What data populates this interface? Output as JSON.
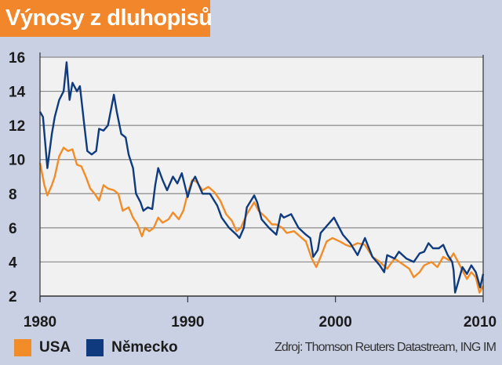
{
  "chart_data": {
    "type": "line",
    "title": "Výnosy z dluhopisů",
    "xlabel": "",
    "ylabel": "",
    "xlim": [
      1980,
      2010
    ],
    "ylim": [
      2,
      16
    ],
    "x_ticks": [
      "1980",
      "1990",
      "2000",
      "2010"
    ],
    "y_ticks": [
      "2",
      "4",
      "6",
      "8",
      "10",
      "12",
      "14",
      "16"
    ],
    "grid": "horizontal",
    "legend_placement": "bottom-left",
    "source": "Zdroj: Thomson Reuters Datastream, ING IM",
    "series": [
      {
        "name": "USA",
        "color": "#f28c28",
        "points": [
          [
            1980.0,
            9.8
          ],
          [
            1980.3,
            8.5
          ],
          [
            1980.5,
            7.9
          ],
          [
            1980.8,
            8.5
          ],
          [
            1981.0,
            9.0
          ],
          [
            1981.3,
            10.2
          ],
          [
            1981.6,
            10.7
          ],
          [
            1981.9,
            10.5
          ],
          [
            1982.2,
            10.6
          ],
          [
            1982.5,
            9.7
          ],
          [
            1982.8,
            9.6
          ],
          [
            1983.1,
            9.0
          ],
          [
            1983.4,
            8.3
          ],
          [
            1983.7,
            8.0
          ],
          [
            1984.0,
            7.6
          ],
          [
            1984.3,
            8.5
          ],
          [
            1984.6,
            8.3
          ],
          [
            1985.0,
            8.2
          ],
          [
            1985.3,
            8.0
          ],
          [
            1985.6,
            7.0
          ],
          [
            1986.0,
            7.2
          ],
          [
            1986.3,
            6.6
          ],
          [
            1986.6,
            6.2
          ],
          [
            1986.9,
            5.5
          ],
          [
            1987.1,
            6.0
          ],
          [
            1987.4,
            5.8
          ],
          [
            1987.7,
            6.0
          ],
          [
            1988.0,
            6.6
          ],
          [
            1988.3,
            6.3
          ],
          [
            1988.7,
            6.5
          ],
          [
            1989.0,
            6.9
          ],
          [
            1989.4,
            6.5
          ],
          [
            1989.7,
            7.0
          ],
          [
            1990.0,
            8.0
          ],
          [
            1990.3,
            8.8
          ],
          [
            1990.6,
            8.7
          ],
          [
            1991.0,
            8.2
          ],
          [
            1991.4,
            8.4
          ],
          [
            1991.8,
            8.1
          ],
          [
            1992.2,
            7.6
          ],
          [
            1992.6,
            6.8
          ],
          [
            1993.0,
            6.4
          ],
          [
            1993.3,
            5.8
          ],
          [
            1993.6,
            6.0
          ],
          [
            1994.0,
            6.8
          ],
          [
            1994.5,
            7.5
          ],
          [
            1994.8,
            7.0
          ],
          [
            1995.3,
            6.6
          ],
          [
            1995.7,
            6.2
          ],
          [
            1996.0,
            6.2
          ],
          [
            1996.4,
            6.0
          ],
          [
            1996.7,
            5.7
          ],
          [
            1997.2,
            5.8
          ],
          [
            1997.6,
            5.5
          ],
          [
            1998.0,
            5.2
          ],
          [
            1998.4,
            4.2
          ],
          [
            1998.7,
            3.7
          ],
          [
            1999.0,
            4.3
          ],
          [
            1999.4,
            5.2
          ],
          [
            1999.8,
            5.4
          ],
          [
            2000.3,
            5.2
          ],
          [
            2000.7,
            5.0
          ],
          [
            2001.0,
            4.9
          ],
          [
            2001.5,
            5.1
          ],
          [
            2002.0,
            5.0
          ],
          [
            2002.5,
            4.3
          ],
          [
            2003.0,
            4.0
          ],
          [
            2003.5,
            3.6
          ],
          [
            2004.0,
            4.2
          ],
          [
            2004.5,
            3.9
          ],
          [
            2005.0,
            3.6
          ],
          [
            2005.3,
            3.1
          ],
          [
            2005.7,
            3.4
          ],
          [
            2006.0,
            3.8
          ],
          [
            2006.5,
            4.0
          ],
          [
            2006.9,
            3.7
          ],
          [
            2007.3,
            4.3
          ],
          [
            2007.7,
            4.1
          ],
          [
            2008.0,
            4.5
          ],
          [
            2008.3,
            4.0
          ],
          [
            2008.6,
            3.5
          ],
          [
            2008.9,
            3.0
          ],
          [
            2009.2,
            3.4
          ],
          [
            2009.5,
            3.1
          ],
          [
            2009.75,
            2.2
          ],
          [
            2010.0,
            2.6
          ]
        ]
      },
      {
        "name": "Německo",
        "color": "#0f3a7d",
        "points": [
          [
            1980.0,
            12.8
          ],
          [
            1980.2,
            12.5
          ],
          [
            1980.5,
            9.5
          ],
          [
            1980.8,
            11.5
          ],
          [
            1981.0,
            12.5
          ],
          [
            1981.3,
            13.5
          ],
          [
            1981.6,
            14.0
          ],
          [
            1981.8,
            15.7
          ],
          [
            1982.0,
            13.5
          ],
          [
            1982.2,
            14.5
          ],
          [
            1982.5,
            14.0
          ],
          [
            1982.7,
            14.3
          ],
          [
            1983.0,
            12.0
          ],
          [
            1983.2,
            10.5
          ],
          [
            1983.5,
            10.3
          ],
          [
            1983.8,
            10.5
          ],
          [
            1984.0,
            11.8
          ],
          [
            1984.3,
            11.7
          ],
          [
            1984.6,
            12.0
          ],
          [
            1985.0,
            13.8
          ],
          [
            1985.2,
            12.8
          ],
          [
            1985.5,
            11.5
          ],
          [
            1985.8,
            11.3
          ],
          [
            1986.0,
            10.3
          ],
          [
            1986.3,
            9.5
          ],
          [
            1986.5,
            8.0
          ],
          [
            1986.8,
            7.5
          ],
          [
            1987.0,
            7.0
          ],
          [
            1987.3,
            7.2
          ],
          [
            1987.6,
            7.1
          ],
          [
            1987.8,
            8.5
          ],
          [
            1988.0,
            9.5
          ],
          [
            1988.3,
            8.8
          ],
          [
            1988.6,
            8.2
          ],
          [
            1989.0,
            9.0
          ],
          [
            1989.3,
            8.6
          ],
          [
            1989.6,
            9.2
          ],
          [
            1990.0,
            7.8
          ],
          [
            1990.3,
            8.7
          ],
          [
            1990.5,
            9.0
          ],
          [
            1991.0,
            8.0
          ],
          [
            1991.5,
            8.0
          ],
          [
            1992.0,
            7.3
          ],
          [
            1992.3,
            6.6
          ],
          [
            1992.8,
            6.0
          ],
          [
            1993.3,
            5.6
          ],
          [
            1993.5,
            5.4
          ],
          [
            1993.8,
            6.0
          ],
          [
            1994.0,
            7.2
          ],
          [
            1994.5,
            7.9
          ],
          [
            1994.7,
            7.5
          ],
          [
            1995.0,
            6.5
          ],
          [
            1995.5,
            6.0
          ],
          [
            1996.0,
            5.6
          ],
          [
            1996.3,
            6.8
          ],
          [
            1996.5,
            6.6
          ],
          [
            1997.0,
            6.8
          ],
          [
            1997.5,
            6.0
          ],
          [
            1998.0,
            5.6
          ],
          [
            1998.3,
            5.4
          ],
          [
            1998.5,
            4.3
          ],
          [
            1998.8,
            4.7
          ],
          [
            1999.0,
            5.7
          ],
          [
            1999.5,
            6.2
          ],
          [
            1999.9,
            6.6
          ],
          [
            2000.2,
            6.1
          ],
          [
            2000.5,
            5.6
          ],
          [
            2001.0,
            5.1
          ],
          [
            2001.5,
            4.4
          ],
          [
            2002.0,
            5.4
          ],
          [
            2002.5,
            4.3
          ],
          [
            2003.0,
            3.8
          ],
          [
            2003.3,
            3.4
          ],
          [
            2003.5,
            4.4
          ],
          [
            2004.0,
            4.2
          ],
          [
            2004.3,
            4.6
          ],
          [
            2004.8,
            4.2
          ],
          [
            2005.3,
            4.0
          ],
          [
            2005.7,
            4.5
          ],
          [
            2006.0,
            4.6
          ],
          [
            2006.3,
            5.1
          ],
          [
            2006.6,
            4.8
          ],
          [
            2007.0,
            4.8
          ],
          [
            2007.3,
            5.0
          ],
          [
            2007.6,
            4.4
          ],
          [
            2007.9,
            4.0
          ],
          [
            2008.0,
            3.5
          ],
          [
            2008.1,
            2.2
          ],
          [
            2008.3,
            2.8
          ],
          [
            2008.6,
            3.7
          ],
          [
            2008.9,
            3.3
          ],
          [
            2009.2,
            3.8
          ],
          [
            2009.5,
            3.4
          ],
          [
            2009.8,
            2.5
          ],
          [
            2010.0,
            3.3
          ]
        ]
      }
    ]
  }
}
